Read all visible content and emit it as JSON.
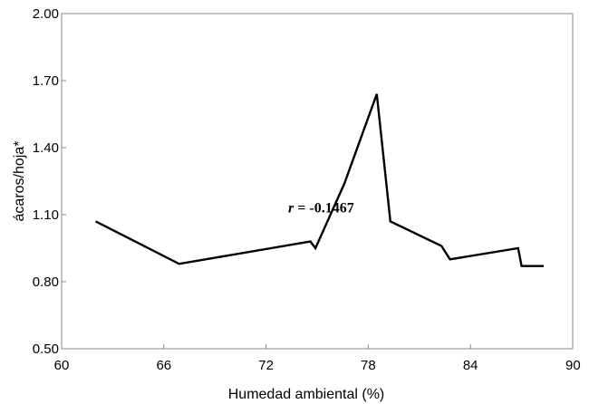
{
  "chart_data": {
    "type": "line",
    "title": "",
    "xlabel": "Humedad ambiental (%)",
    "ylabel": "ácaros/hoja*",
    "xlim": [
      60,
      90
    ],
    "ylim": [
      0.5,
      2.0
    ],
    "x_ticks": [
      "60",
      "66",
      "72",
      "78",
      "84",
      "90"
    ],
    "y_ticks": [
      "0.50",
      "0.80",
      "1.10",
      "1.40",
      "1.70",
      "2.00"
    ],
    "grid": false,
    "legend": "none",
    "annotation": {
      "r_symbol": "r",
      "text": " = -0.1467",
      "x": 73.3,
      "y": 1.11
    },
    "series": [
      {
        "x": [
          62.0,
          66.9,
          74.6,
          74.9,
          76.6,
          78.5,
          79.3,
          82.3,
          82.8,
          86.8,
          87.0,
          88.3
        ],
        "y": [
          1.07,
          0.88,
          0.98,
          0.95,
          1.24,
          1.64,
          1.07,
          0.96,
          0.9,
          0.95,
          0.87,
          0.87
        ]
      }
    ]
  }
}
